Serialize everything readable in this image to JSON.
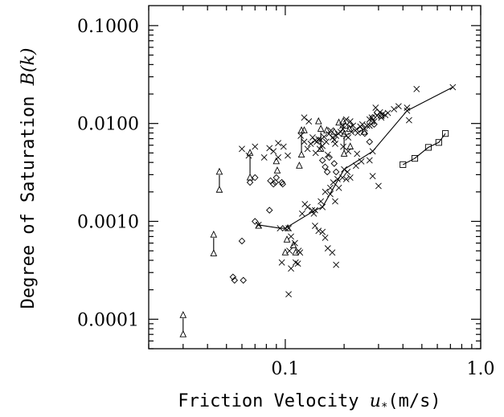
{
  "chart_data": {
    "type": "scatter",
    "xlabel_text": "Friction Velocity ",
    "xlabel_math": "u",
    "xlabel_sub": "*",
    "xlabel_unit": "(m/s)",
    "ylabel_text": "Degree of Saturation ",
    "ylabel_math": "B(k)",
    "x_scale": "log",
    "y_scale": "log",
    "xlim": [
      0.02,
      1.0
    ],
    "ylim": [
      5e-05,
      0.16
    ],
    "x_ticks": [
      {
        "value": 0.1,
        "label": "0.1"
      },
      {
        "value": 1.0,
        "label": "1.0"
      }
    ],
    "y_ticks": [
      {
        "value": 0.0001,
        "label": "0.0001"
      },
      {
        "value": 0.001,
        "label": "0.0010"
      },
      {
        "value": 0.01,
        "label": "0.0100"
      },
      {
        "value": 0.1,
        "label": "0.1000"
      }
    ],
    "grid": false,
    "legend": "none",
    "series": [
      {
        "marker": "x",
        "points": [
          [
            0.06,
            0.0055
          ],
          [
            0.065,
            0.0047
          ],
          [
            0.07,
            0.0058
          ],
          [
            0.078,
            0.0045
          ],
          [
            0.083,
            0.0056
          ],
          [
            0.087,
            0.0052
          ],
          [
            0.092,
            0.0063
          ],
          [
            0.098,
            0.0058
          ],
          [
            0.092,
            0.0045
          ],
          [
            0.103,
            0.0047
          ],
          [
            0.104,
            0.00085
          ],
          [
            0.107,
            0.0007
          ],
          [
            0.112,
            0.0006
          ],
          [
            0.105,
            0.0005
          ],
          [
            0.117,
            0.0005
          ],
          [
            0.119,
            0.00048
          ],
          [
            0.096,
            0.00038
          ],
          [
            0.107,
            0.00033
          ],
          [
            0.113,
            0.00038
          ],
          [
            0.116,
            0.00037
          ],
          [
            0.104,
            0.00018
          ],
          [
            0.122,
            0.0012
          ],
          [
            0.126,
            0.0015
          ],
          [
            0.13,
            0.0014
          ],
          [
            0.137,
            0.0013
          ],
          [
            0.142,
            0.0009
          ],
          [
            0.148,
            0.0008
          ],
          [
            0.155,
            0.00078
          ],
          [
            0.16,
            0.00068
          ],
          [
            0.165,
            0.00053
          ],
          [
            0.174,
            0.00048
          ],
          [
            0.182,
            0.00036
          ],
          [
            0.14,
            0.0012
          ],
          [
            0.152,
            0.0016
          ],
          [
            0.16,
            0.002
          ],
          [
            0.17,
            0.0022
          ],
          [
            0.176,
            0.0025
          ],
          [
            0.185,
            0.0027
          ],
          [
            0.196,
            0.0028
          ],
          [
            0.205,
            0.0027
          ],
          [
            0.215,
            0.0028
          ],
          [
            0.188,
            0.0022
          ],
          [
            0.17,
            0.0019
          ],
          [
            0.18,
            0.0016
          ],
          [
            0.208,
            0.0032
          ],
          [
            0.23,
            0.0037
          ],
          [
            0.245,
            0.0041
          ],
          [
            0.233,
            0.0049
          ],
          [
            0.27,
            0.0042
          ],
          [
            0.28,
            0.0029
          ],
          [
            0.3,
            0.0023
          ],
          [
            0.12,
            0.0075
          ],
          [
            0.125,
            0.0065
          ],
          [
            0.13,
            0.0055
          ],
          [
            0.135,
            0.0062
          ],
          [
            0.138,
            0.0072
          ],
          [
            0.142,
            0.0067
          ],
          [
            0.145,
            0.0065
          ],
          [
            0.148,
            0.0069
          ],
          [
            0.152,
            0.0068
          ],
          [
            0.158,
            0.0073
          ],
          [
            0.162,
            0.0065
          ],
          [
            0.167,
            0.0078
          ],
          [
            0.171,
            0.0085
          ],
          [
            0.175,
            0.0072
          ],
          [
            0.178,
            0.0068
          ],
          [
            0.182,
            0.0075
          ],
          [
            0.187,
            0.0079
          ],
          [
            0.192,
            0.0082
          ],
          [
            0.197,
            0.0088
          ],
          [
            0.205,
            0.0075
          ],
          [
            0.21,
            0.0072
          ],
          [
            0.218,
            0.0082
          ],
          [
            0.222,
            0.0095
          ],
          [
            0.228,
            0.0085
          ],
          [
            0.235,
            0.008
          ],
          [
            0.242,
            0.0093
          ],
          [
            0.248,
            0.0098
          ],
          [
            0.255,
            0.0089
          ],
          [
            0.262,
            0.0095
          ],
          [
            0.27,
            0.011
          ],
          [
            0.277,
            0.0115
          ],
          [
            0.285,
            0.0105
          ],
          [
            0.295,
            0.012
          ],
          [
            0.305,
            0.013
          ],
          [
            0.315,
            0.0125
          ],
          [
            0.325,
            0.0122
          ],
          [
            0.335,
            0.0128
          ],
          [
            0.31,
            0.0115
          ],
          [
            0.36,
            0.014
          ],
          [
            0.38,
            0.015
          ],
          [
            0.15,
            0.0055
          ],
          [
            0.155,
            0.0059
          ],
          [
            0.143,
            0.005
          ],
          [
            0.165,
            0.0048
          ],
          [
            0.198,
            0.0058
          ],
          [
            0.21,
            0.0052
          ],
          [
            0.132,
            0.0105
          ],
          [
            0.125,
            0.0115
          ],
          [
            0.18,
            0.0062
          ],
          [
            0.196,
            0.0095
          ],
          [
            0.205,
            0.011
          ],
          [
            0.215,
            0.0105
          ],
          [
            0.27,
            0.0095
          ],
          [
            0.29,
            0.0145
          ],
          [
            0.47,
            0.0225
          ],
          [
            0.42,
            0.0145
          ],
          [
            0.43,
            0.0108
          ]
        ]
      },
      {
        "marker": "triangle",
        "points": [
          [
            0.09,
            0.0041
          ],
          [
            0.091,
            0.0033
          ],
          [
            0.073,
            0.0009
          ],
          [
            0.103,
            0.00085
          ],
          [
            0.102,
            0.00065
          ],
          [
            0.11,
            0.00057
          ],
          [
            0.1,
            0.00048
          ],
          [
            0.113,
            0.00048
          ],
          [
            0.118,
            0.0037
          ],
          [
            0.125,
            0.0085
          ],
          [
            0.148,
            0.0105
          ],
          [
            0.163,
            0.0085
          ],
          [
            0.178,
            0.0082
          ],
          [
            0.188,
            0.0102
          ],
          [
            0.203,
            0.0095
          ],
          [
            0.213,
            0.0088
          ],
          [
            0.253,
            0.0082
          ],
          [
            0.278,
            0.0105
          ],
          [
            0.31,
            0.012
          ],
          [
            0.215,
            0.0058
          ],
          [
            0.198,
            0.0105
          ]
        ]
      },
      {
        "marker": "diamond",
        "points": [
          [
            0.055,
            0.00025
          ],
          [
            0.054,
            0.00027
          ],
          [
            0.061,
            0.00025
          ],
          [
            0.06,
            0.00063
          ],
          [
            0.07,
            0.001
          ],
          [
            0.066,
            0.0025
          ],
          [
            0.07,
            0.0028
          ],
          [
            0.083,
            0.0013
          ],
          [
            0.084,
            0.0026
          ],
          [
            0.087,
            0.0024
          ],
          [
            0.089,
            0.0025
          ],
          [
            0.09,
            0.0028
          ],
          [
            0.096,
            0.0025
          ],
          [
            0.097,
            0.0024
          ],
          [
            0.155,
            0.0042
          ],
          [
            0.16,
            0.0036
          ],
          [
            0.164,
            0.0032
          ],
          [
            0.168,
            0.0045
          ],
          [
            0.178,
            0.0039
          ],
          [
            0.182,
            0.0032
          ],
          [
            0.215,
            0.0098
          ],
          [
            0.24,
            0.0087
          ],
          [
            0.255,
            0.0079
          ],
          [
            0.27,
            0.0065
          ],
          [
            0.28,
            0.0115
          ],
          [
            0.295,
            0.013
          ],
          [
            0.285,
            0.0098
          ]
        ]
      },
      {
        "marker": "x",
        "connected": true,
        "points": [
          [
            0.073,
            0.00092
          ],
          [
            0.094,
            0.00085
          ],
          [
            0.1,
            0.00085
          ],
          [
            0.142,
            0.0013
          ],
          [
            0.155,
            0.0014
          ],
          [
            0.2,
            0.0034
          ],
          [
            0.28,
            0.0052
          ],
          [
            0.42,
            0.0135
          ],
          [
            0.72,
            0.0235
          ]
        ]
      },
      {
        "marker": "square",
        "connected": true,
        "points": [
          [
            0.4,
            0.0038
          ],
          [
            0.46,
            0.0044
          ],
          [
            0.54,
            0.0057
          ],
          [
            0.61,
            0.0064
          ],
          [
            0.66,
            0.0079
          ]
        ]
      },
      {
        "marker": "triangle-pair",
        "pairs": [
          [
            0.03,
            7e-05,
            0.00011
          ],
          [
            0.043,
            0.00047,
            0.00073
          ],
          [
            0.046,
            0.0021,
            0.0032
          ],
          [
            0.066,
            0.0028,
            0.005
          ],
          [
            0.121,
            0.0048,
            0.0085
          ],
          [
            0.152,
            0.0055,
            0.0088
          ],
          [
            0.2,
            0.0049,
            0.0078
          ]
        ]
      }
    ]
  }
}
